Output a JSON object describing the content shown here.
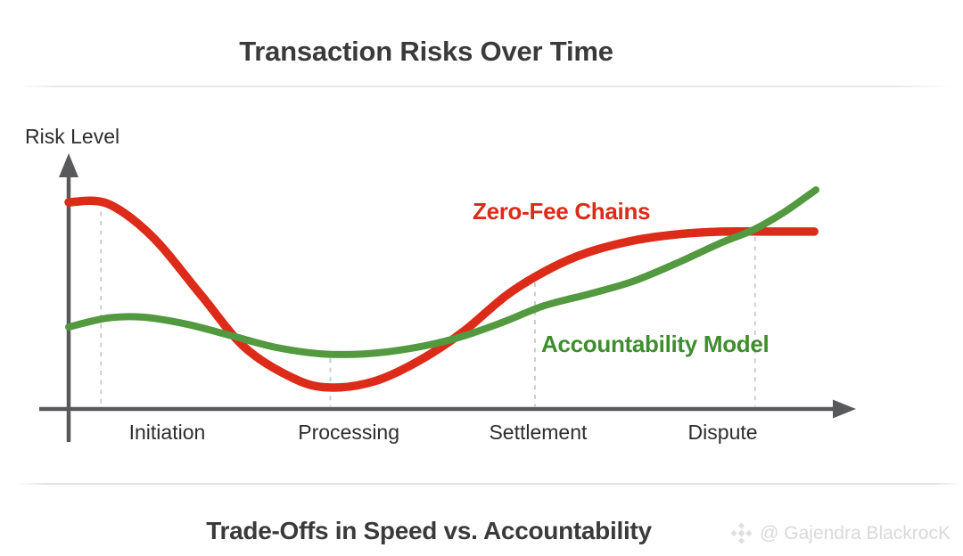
{
  "title": "Transaction Risks Over Time",
  "footer": {
    "caption": "Trade-Offs in Speed vs. Accountability",
    "watermark": "@ Gajendra BlackrocK",
    "watermark_icon": "binance-diamond-logo"
  },
  "chart_data": {
    "type": "line",
    "title": "Transaction Risks Over Time",
    "xlabel": "",
    "ylabel": "Risk Level",
    "ylim": [
      0,
      100
    ],
    "grid": false,
    "legend_position": "inline labels beside each curve",
    "x_axis_note": "conceptual transaction lifecycle stages, no numeric ticks",
    "stages": [
      {
        "label": "Initiation",
        "x": 0.128
      },
      {
        "label": "Processing",
        "x": 0.364
      },
      {
        "label": "Settlement",
        "x": 0.61
      },
      {
        "label": "Dispute",
        "x": 0.85
      }
    ],
    "guides_dashed_x": [
      {
        "x": 0.042,
        "top_risk": 78
      },
      {
        "x": 0.34,
        "top_risk": 20
      },
      {
        "x": 0.606,
        "top_risk": 50
      },
      {
        "x": 0.892,
        "top_risk": 68
      }
    ],
    "series": [
      {
        "name": "Zero-Fee Chains",
        "color": "#dd2b1a",
        "stroke_width": 9.5,
        "values_at_stages": [
          80,
          9,
          53,
          70
        ],
        "points": [
          [
            0,
            81.7
          ],
          [
            0.05,
            81.2
          ],
          [
            0.108,
            68.3
          ],
          [
            0.171,
            45.4
          ],
          [
            0.229,
            24.3
          ],
          [
            0.293,
            12
          ],
          [
            0.339,
            8.5
          ],
          [
            0.397,
            10.9
          ],
          [
            0.455,
            19
          ],
          [
            0.513,
            30.6
          ],
          [
            0.571,
            45.4
          ],
          [
            0.629,
            56
          ],
          [
            0.676,
            62
          ],
          [
            0.733,
            66.5
          ],
          [
            0.791,
            69
          ],
          [
            0.849,
            70.1
          ],
          [
            0.907,
            70.1
          ],
          [
            0.969,
            70.1
          ]
        ]
      },
      {
        "name": "Accountability Model",
        "color": "#539940",
        "stroke_width": 8,
        "values_at_stages": [
          35,
          22,
          40,
          66
        ],
        "points": [
          [
            0,
            32.4
          ],
          [
            0.05,
            35.9
          ],
          [
            0.096,
            36.3
          ],
          [
            0.154,
            33.5
          ],
          [
            0.212,
            28.9
          ],
          [
            0.27,
            24.3
          ],
          [
            0.328,
            21.8
          ],
          [
            0.386,
            21.8
          ],
          [
            0.444,
            23.9
          ],
          [
            0.502,
            27.8
          ],
          [
            0.56,
            33.8
          ],
          [
            0.618,
            40.8
          ],
          [
            0.676,
            45.4
          ],
          [
            0.733,
            50.4
          ],
          [
            0.791,
            57.7
          ],
          [
            0.849,
            65.8
          ],
          [
            0.89,
            70.8
          ],
          [
            0.93,
            77.8
          ],
          [
            0.971,
            86.6
          ]
        ]
      }
    ],
    "colors": {
      "axis": "#58595b",
      "dashed_guide": "#c9c9c9",
      "zero_fee_red": "#dd2b1a",
      "accountability_green": "#539940"
    }
  }
}
